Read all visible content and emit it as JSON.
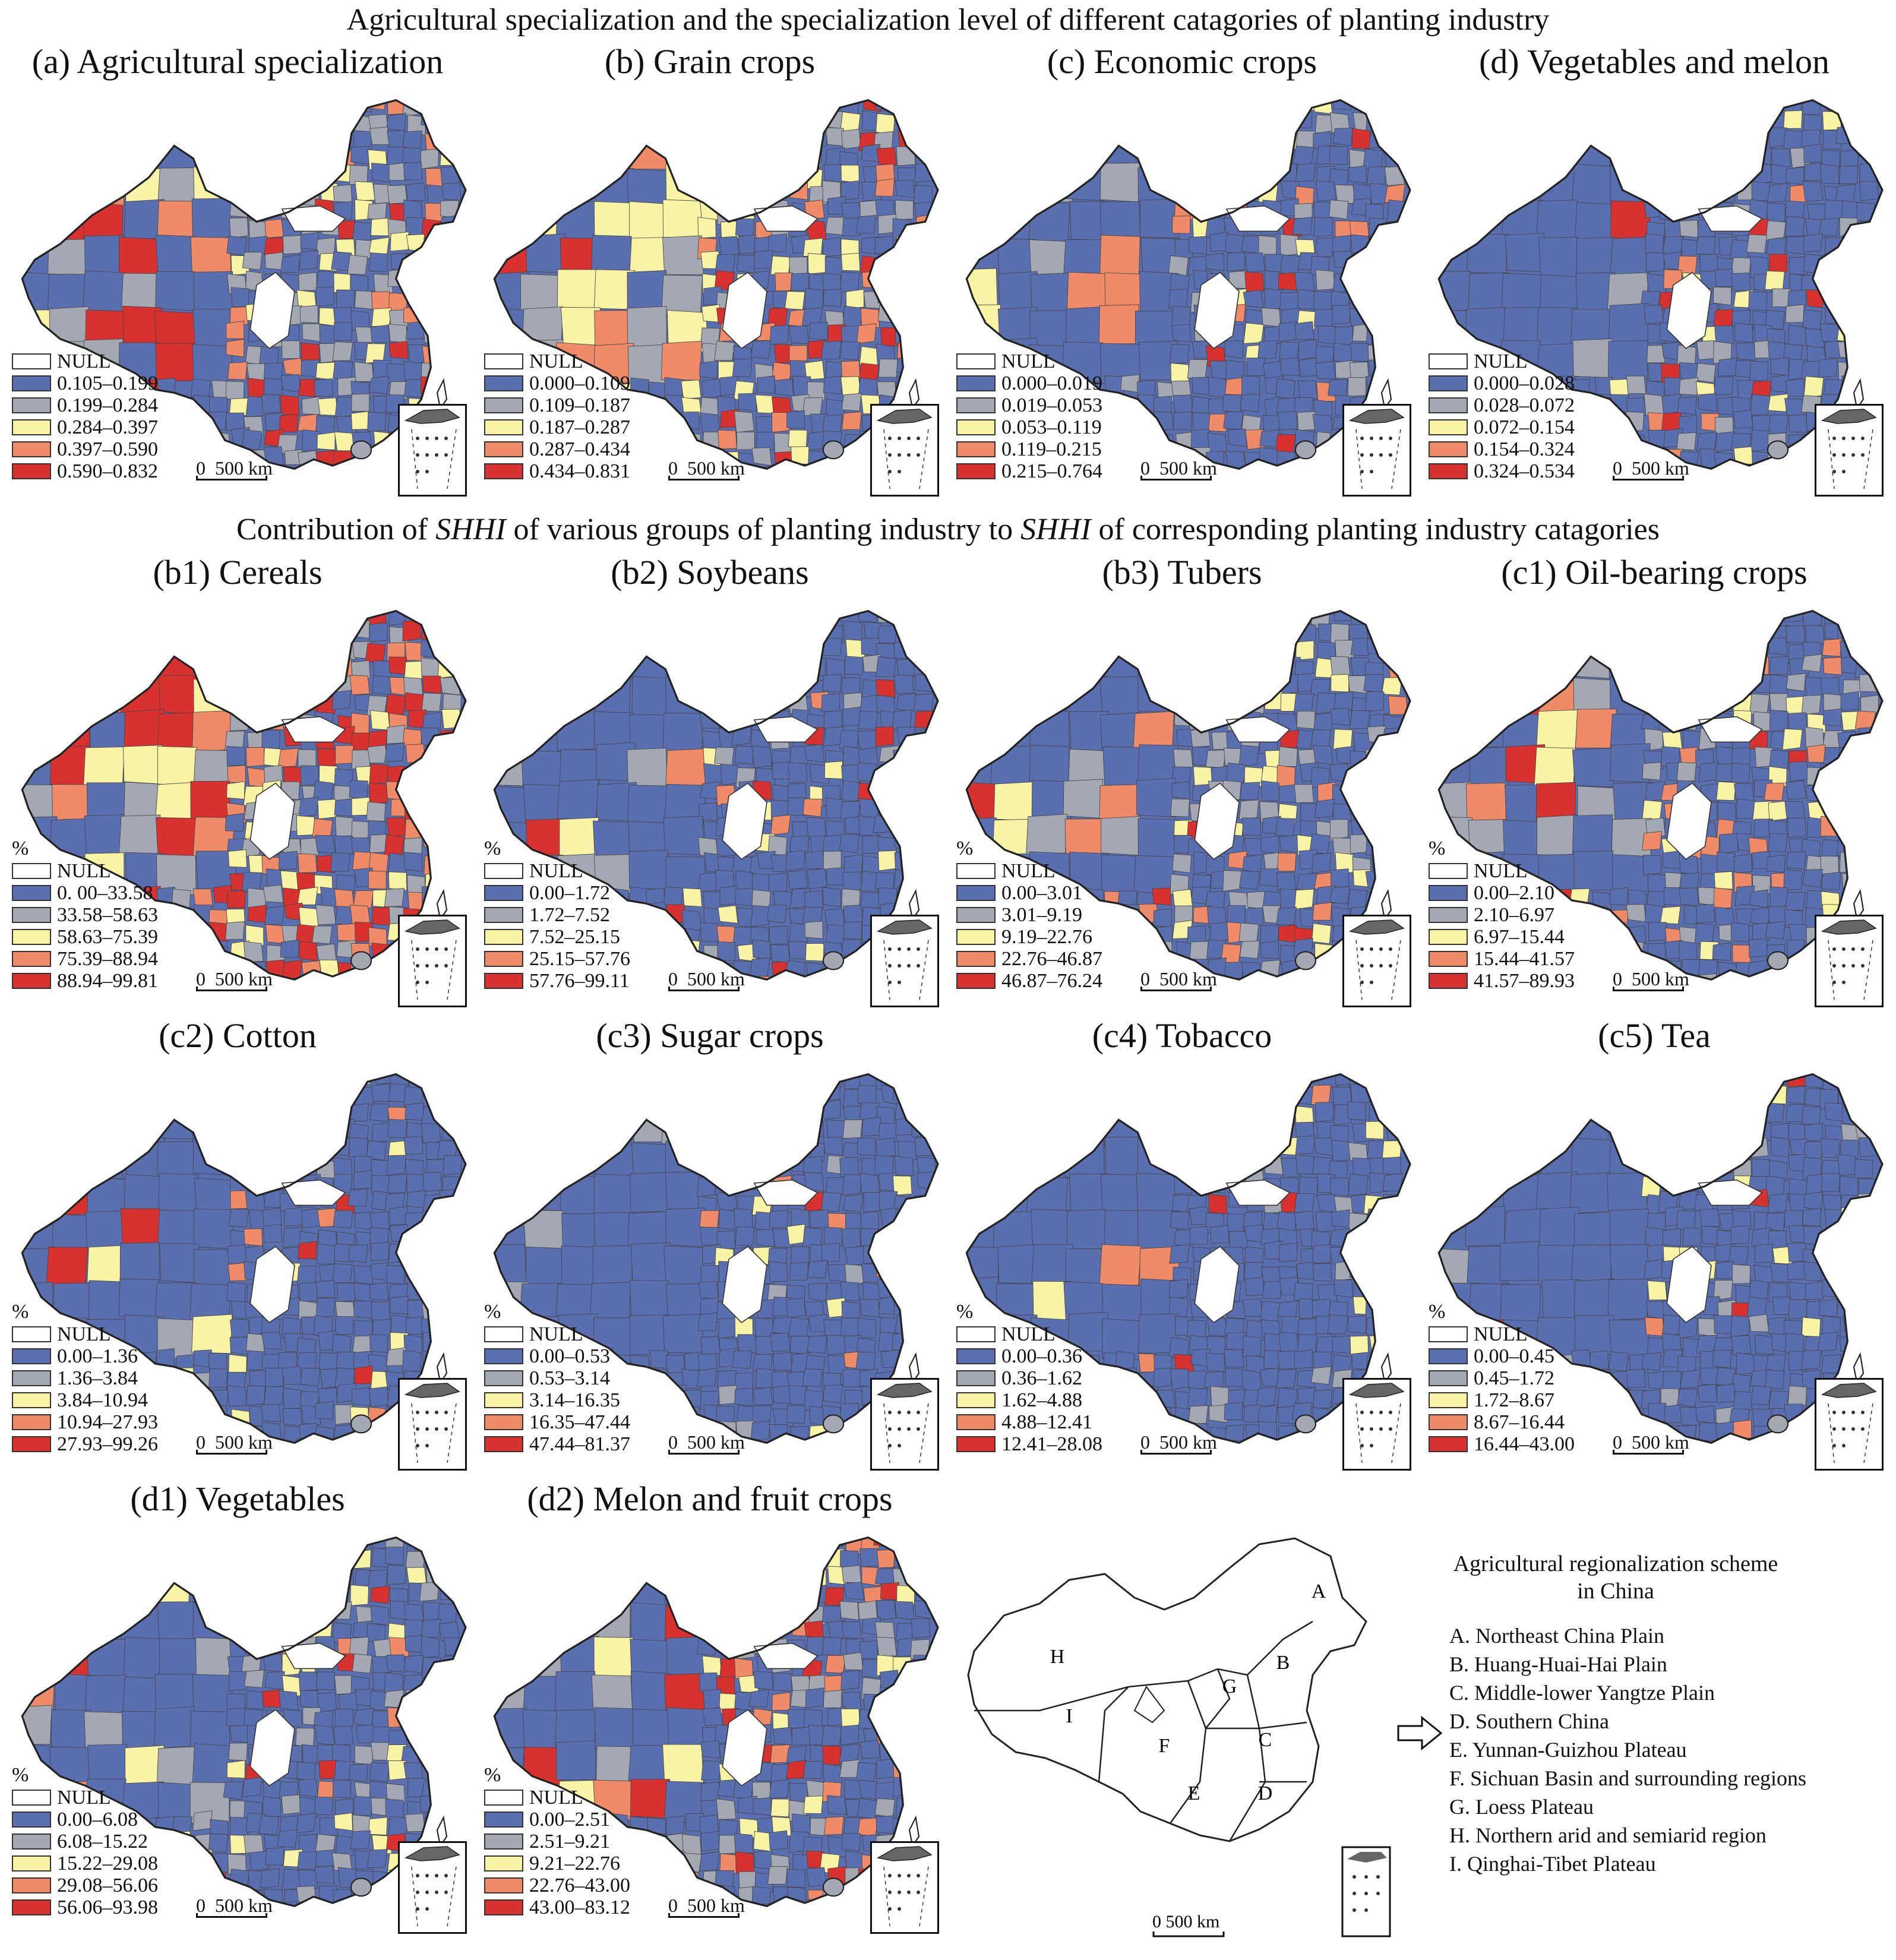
{
  "header": {
    "title_top": "Agricultural specialization and the specialization level of different catagories of planting industry",
    "title_mid": {
      "part1": "Contribution of ",
      "italic1": "SHHI",
      "part2": " of various groups of planting industry to ",
      "italic2": "SHHI",
      "part3": " of corresponding planting industry catagories"
    }
  },
  "colors": {
    "null": "#ffffff",
    "c1": "#5a6fb0",
    "c2": "#a3a8b2",
    "c3": "#f9f3a6",
    "c4": "#f08b6a",
    "c5": "#d7322f",
    "border": "#444444"
  },
  "scale_label": "0  500 km",
  "panels": [
    {
      "title": "(a) Agricultural specialization",
      "unit": "",
      "legend": [
        "NULL",
        "0.105–0.199",
        "0.199–0.284",
        "0.284–0.397",
        "0.397–0.590",
        "0.590–0.832"
      ],
      "weights": [
        45,
        25,
        15,
        9,
        6
      ]
    },
    {
      "title": "(b) Grain crops",
      "unit": "",
      "legend": [
        "NULL",
        "0.000–0.109",
        "0.109–0.187",
        "0.187–0.287",
        "0.287–0.434",
        "0.434–0.831"
      ],
      "weights": [
        40,
        20,
        18,
        13,
        9
      ]
    },
    {
      "title": "(c) Economic crops",
      "unit": "",
      "legend": [
        "NULL",
        "0.000–0.019",
        "0.019–0.053",
        "0.053–0.119",
        "0.119–0.215",
        "0.215–0.764"
      ],
      "weights": [
        70,
        14,
        7,
        6,
        3
      ]
    },
    {
      "title": "(d) Vegetables and melon",
      "unit": "",
      "legend": [
        "NULL",
        "0.000–0.028",
        "0.028–0.072",
        "0.072–0.154",
        "0.154–0.324",
        "0.324–0.534"
      ],
      "weights": [
        75,
        13,
        6,
        3,
        3
      ]
    },
    {
      "title": "(b1) Cereals",
      "unit": "%",
      "legend": [
        "NULL",
        "0. 00–33.58",
        "33.58–58.63",
        "58.63–75.39",
        "75.39–88.94",
        "88.94–99.81"
      ],
      "weights": [
        22,
        23,
        17,
        15,
        23
      ]
    },
    {
      "title": "(b2) Soybeans",
      "unit": "%",
      "legend": [
        "NULL",
        "0.00–1.72",
        "1.72–7.52",
        "7.52–25.15",
        "25.15–57.76",
        "57.76–99.11"
      ],
      "weights": [
        78,
        12,
        5,
        3,
        2
      ]
    },
    {
      "title": "(b3) Tubers",
      "unit": "%",
      "legend": [
        "NULL",
        "0.00–3.01",
        "3.01–9.19",
        "9.19–22.76",
        "22.76–46.87",
        "46.87–76.24"
      ],
      "weights": [
        66,
        17,
        8,
        6,
        3
      ]
    },
    {
      "title": "(c1) Oil-bearing crops",
      "unit": "%",
      "legend": [
        "NULL",
        "0.00–2.10",
        "2.10–6.97",
        "6.97–15.44",
        "15.44–41.57",
        "41.57–89.93"
      ],
      "weights": [
        62,
        17,
        10,
        8,
        3
      ]
    },
    {
      "title": "(c2) Cotton",
      "unit": "%",
      "legend": [
        "NULL",
        "0.00–1.36",
        "1.36–3.84",
        "3.84–10.94",
        "10.94–27.93",
        "27.93–99.26"
      ],
      "weights": [
        86,
        6,
        3,
        3,
        2
      ]
    },
    {
      "title": "(c3) Sugar crops",
      "unit": "%",
      "legend": [
        "NULL",
        "0.00–0.53",
        "0.53–3.14",
        "3.14–16.35",
        "16.35–47.44",
        "47.44–81.37"
      ],
      "weights": [
        90,
        4,
        3,
        2,
        1
      ]
    },
    {
      "title": "(c4) Tobacco",
      "unit": "%",
      "legend": [
        "NULL",
        "0.00–0.36",
        "0.36–1.62",
        "1.62–4.88",
        "4.88–12.41",
        "12.41–28.08"
      ],
      "weights": [
        84,
        8,
        4,
        3,
        1
      ]
    },
    {
      "title": "(c5) Tea",
      "unit": "%",
      "legend": [
        "NULL",
        "0.00–0.45",
        "0.45–1.72",
        "1.72–8.67",
        "8.67–16.44",
        "16.44–43.00"
      ],
      "weights": [
        86,
        6,
        5,
        2,
        1
      ]
    },
    {
      "title": "(d1) Vegetables",
      "unit": "%",
      "legend": [
        "NULL",
        "0.00–6.08",
        "6.08–15.22",
        "15.22–29.08",
        "29.08–56.06",
        "56.06–93.98"
      ],
      "weights": [
        66,
        17,
        9,
        5,
        3
      ]
    },
    {
      "title": "(d2) Melon and fruit crops",
      "unit": "%",
      "legend": [
        "NULL",
        "0.00–2.51",
        "2.51–9.21",
        "9.21–22.76",
        "22.76–43.00",
        "43.00–83.12"
      ],
      "weights": [
        60,
        16,
        9,
        9,
        6
      ]
    }
  ],
  "regionalization": {
    "title_line1": "Agricultural regionalization scheme",
    "title_line2": "in China",
    "letters": [
      "A",
      "B",
      "C",
      "D",
      "E",
      "F",
      "G",
      "H",
      "I"
    ],
    "items": [
      "A. Northeast China Plain",
      "B. Huang-Huai-Hai Plain",
      "C. Middle-lower Yangtze Plain",
      "D. Southern China",
      "E. Yunnan-Guizhou Plateau",
      "F. Sichuan Basin and surrounding regions",
      "G. Loess Plateau",
      "H. Northern arid and semiarid region",
      "I. Qinghai-Tibet Plateau"
    ],
    "arrow_icon": "right-arrow-icon"
  }
}
